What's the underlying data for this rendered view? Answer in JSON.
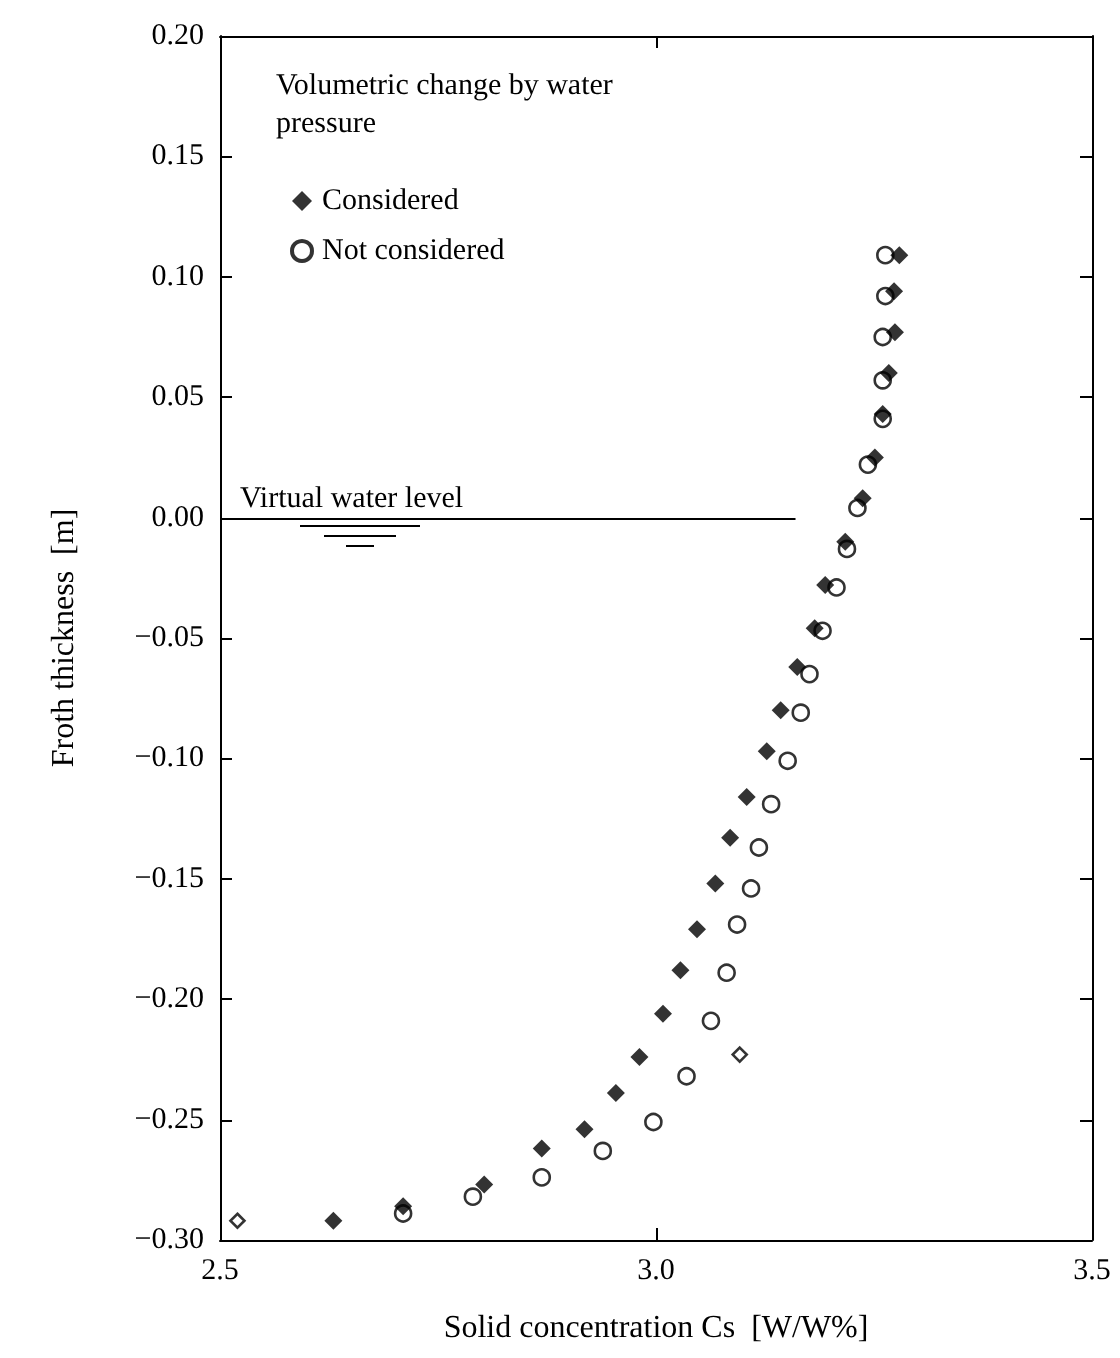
{
  "chart_data": {
    "type": "scatter",
    "xlabel": "Solid concentration Cs  [W/W%]",
    "ylabel": "Froth thickness  [m]",
    "legend_title": "Volumetric change by water pressure",
    "legend": "top left",
    "grid": false,
    "xlim": [
      2.5,
      3.5
    ],
    "xticks": [
      2.5,
      {
        "value": 3.0,
        "label": "3.0"
      },
      3.5
    ],
    "ylim": [
      -0.3,
      0.2
    ],
    "yticks": [
      {
        "value": -0.3,
        "label": "−0.30"
      },
      {
        "value": -0.25,
        "label": "−0.25"
      },
      {
        "value": -0.2,
        "label": "−0.20"
      },
      {
        "value": -0.15,
        "label": "−0.15"
      },
      {
        "value": -0.1,
        "label": "−0.10"
      },
      {
        "value": -0.05,
        "label": "−0.05"
      },
      {
        "value": 0,
        "label": "0.00"
      },
      {
        "value": 0.05,
        "label": "0.05"
      },
      {
        "value": 0.1,
        "label": "0.10"
      },
      {
        "value": 0.15,
        "label": "0.15"
      },
      {
        "value": 0.2,
        "label": "0.20"
      }
    ],
    "ref_lines": [
      {
        "axis": "y",
        "value": 0,
        "label": "Virtual water level",
        "color": "#000000"
      }
    ],
    "series": [
      {
        "name": "Considered",
        "color": "#000000",
        "marker": "diamond",
        "x": [
          3.279,
          3.273,
          3.274,
          3.267,
          3.26,
          3.251,
          3.237,
          3.217,
          3.194,
          3.182,
          3.162,
          3.143,
          3.127,
          3.104,
          3.085,
          3.068,
          3.047,
          3.028,
          3.008,
          2.981,
          2.954,
          2.918,
          2.869,
          2.803,
          2.71,
          2.63
        ],
        "values": [
          0.109,
          0.094,
          0.077,
          0.06,
          0.043,
          0.025,
          0.008,
          -0.01,
          -0.028,
          -0.046,
          -0.062,
          -0.08,
          -0.097,
          -0.116,
          -0.133,
          -0.152,
          -0.171,
          -0.188,
          -0.206,
          -0.224,
          -0.239,
          -0.254,
          -0.262,
          -0.277,
          -0.286,
          -0.292
        ]
      },
      {
        "name": "Not considered",
        "color": "#000000",
        "marker": "circle",
        "x": [
          3.263,
          3.263,
          3.26,
          3.26,
          3.26,
          3.243,
          3.231,
          3.219,
          3.207,
          3.191,
          3.176,
          3.166,
          3.151,
          3.132,
          3.118,
          3.109,
          3.093,
          3.081,
          3.063,
          3.035,
          2.997,
          2.939,
          2.869,
          2.79,
          2.71
        ],
        "values": [
          0.109,
          0.092,
          0.075,
          0.057,
          0.041,
          0.022,
          0.004,
          -0.013,
          -0.029,
          -0.047,
          -0.065,
          -0.081,
          -0.101,
          -0.119,
          -0.137,
          -0.154,
          -0.169,
          -0.189,
          -0.209,
          -0.232,
          -0.251,
          -0.263,
          -0.274,
          -0.282,
          -0.289
        ]
      },
      {
        "color": "#000000",
        "marker": "diamond",
        "x": [
          3.096,
          2.52
        ],
        "values": [
          -0.223,
          -0.292
        ]
      }
    ]
  }
}
